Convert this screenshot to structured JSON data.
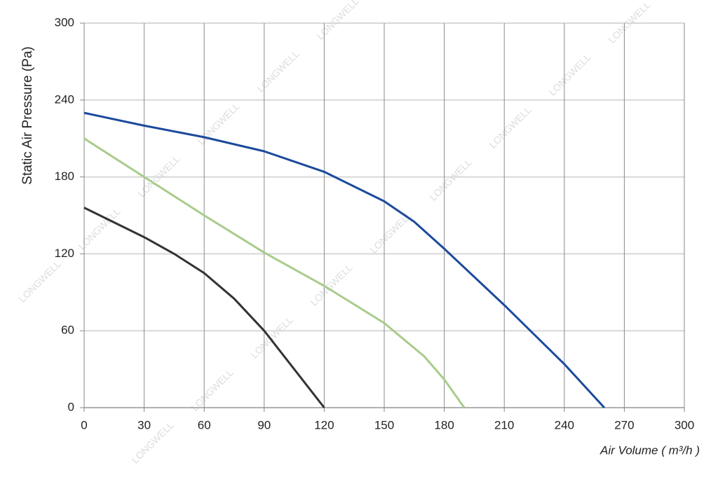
{
  "chart_data": {
    "type": "line",
    "y_label": "Static Air Pressure  (Pa)",
    "x_label": "Air Volume ( m³/h )",
    "watermark": "LONGWELL",
    "xlim": [
      0,
      300
    ],
    "xticks": [
      0,
      30,
      60,
      90,
      120,
      150,
      180,
      210,
      240,
      270,
      300
    ],
    "ylim": [
      0,
      300
    ],
    "yticks": [
      0,
      60,
      120,
      180,
      240,
      300
    ],
    "grid": true,
    "series": [
      {
        "color": "#1b4a9c",
        "x": [
          0,
          30,
          60,
          90,
          120,
          150,
          165,
          180,
          210,
          240,
          260
        ],
        "values": [
          230,
          220,
          211,
          200,
          184,
          161,
          145,
          124,
          80,
          34,
          0
        ]
      },
      {
        "color": "#a8cc8c",
        "x": [
          0,
          30,
          60,
          90,
          120,
          150,
          170,
          180,
          190
        ],
        "values": [
          210,
          180,
          150,
          121,
          95,
          66,
          40,
          22,
          0
        ]
      },
      {
        "color": "#333333",
        "x": [
          0,
          30,
          45,
          60,
          75,
          90,
          105,
          120
        ],
        "values": [
          156,
          133,
          120,
          105,
          85,
          60,
          30,
          0
        ]
      }
    ]
  }
}
